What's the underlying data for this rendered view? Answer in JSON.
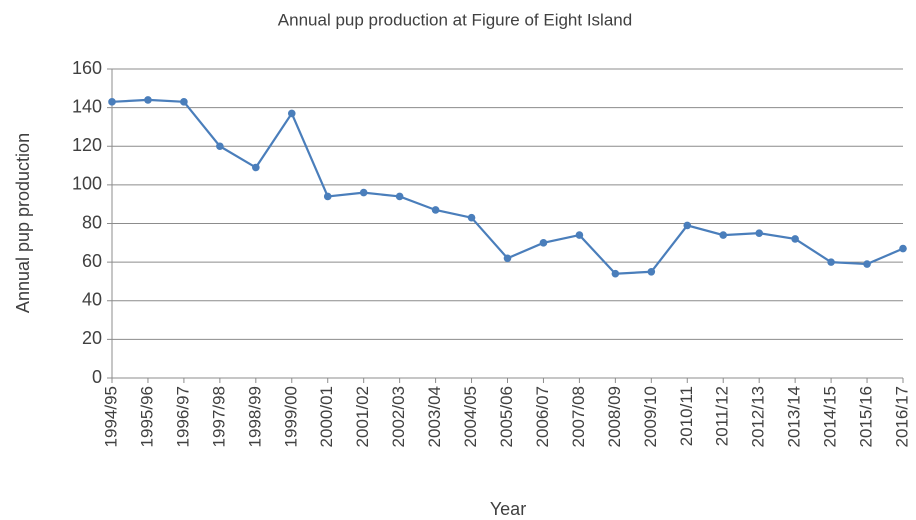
{
  "chart_data": {
    "type": "line",
    "title": "Annual pup production at Figure of Eight Island",
    "x_label": "Year",
    "y_label": "Annual pup production",
    "categories": [
      "1994/95",
      "1995/96",
      "1996/97",
      "1997/98",
      "1998/99",
      "1999/00",
      "2000/01",
      "2001/02",
      "2002/03",
      "2003/04",
      "2004/05",
      "2005/06",
      "2006/07",
      "2007/08",
      "2008/09",
      "2009/10",
      "2010/11",
      "2011/12",
      "2012/13",
      "2013/14",
      "2014/15",
      "2015/16",
      "2016/17"
    ],
    "values": [
      143,
      144,
      143,
      120,
      109,
      137,
      94,
      96,
      94,
      87,
      83,
      62,
      70,
      74,
      54,
      55,
      79,
      74,
      75,
      72,
      60,
      59,
      67
    ],
    "color": "#4a7ebb",
    "ylim": [
      0,
      160
    ],
    "yticks": [
      0,
      20,
      40,
      60,
      80,
      100,
      120,
      140,
      160
    ],
    "grid": true
  }
}
